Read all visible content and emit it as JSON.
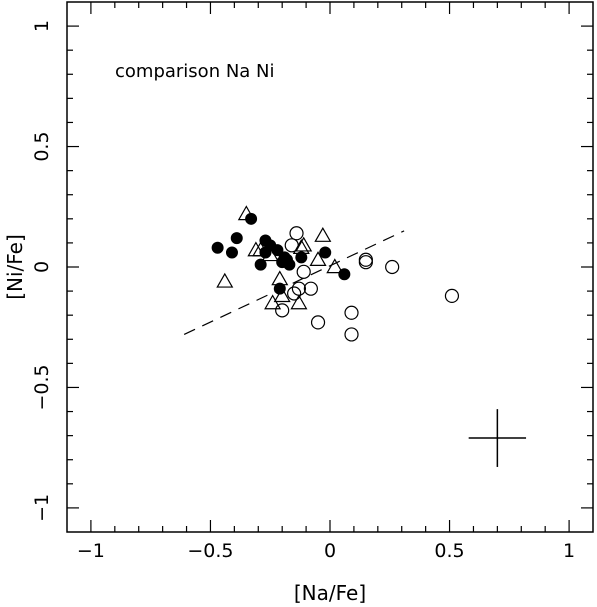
{
  "chart_data": {
    "type": "scatter",
    "title": "",
    "xlabel": "[Na/Fe]",
    "ylabel": "[Ni/Fe]",
    "xlim": [
      -1.1,
      1.1
    ],
    "ylim": [
      -1.1,
      1.1
    ],
    "xticks": [
      -1,
      -0.5,
      0,
      0.5,
      1
    ],
    "xtick_labels": [
      "−1",
      "−0.5",
      "0",
      "0.5",
      "1"
    ],
    "yticks": [
      -1,
      -0.5,
      0,
      0.5,
      1
    ],
    "ytick_labels": [
      "−1",
      "−0.5",
      "0",
      "0.5",
      "1"
    ],
    "grid": false,
    "annotation": "comparison Na Ni",
    "series": [
      {
        "marker": "filled-circle",
        "points": [
          [
            -0.47,
            0.08
          ],
          [
            -0.41,
            0.06
          ],
          [
            -0.39,
            0.12
          ],
          [
            -0.33,
            0.2
          ],
          [
            -0.29,
            0.01
          ],
          [
            -0.27,
            0.11
          ],
          [
            -0.25,
            0.09
          ],
          [
            -0.22,
            0.07
          ],
          [
            -0.2,
            0.02
          ],
          [
            -0.19,
            0.04
          ],
          [
            -0.18,
            0.03
          ],
          [
            -0.17,
            0.01
          ],
          [
            -0.12,
            0.04
          ],
          [
            -0.21,
            -0.09
          ],
          [
            -0.02,
            0.06
          ],
          [
            0.06,
            -0.03
          ],
          [
            -0.27,
            0.06
          ]
        ]
      },
      {
        "marker": "open-circle",
        "points": [
          [
            -0.14,
            0.14
          ],
          [
            -0.16,
            0.09
          ],
          [
            -0.11,
            -0.02
          ],
          [
            -0.08,
            -0.09
          ],
          [
            -0.13,
            -0.09
          ],
          [
            -0.15,
            -0.11
          ],
          [
            -0.2,
            -0.18
          ],
          [
            -0.05,
            -0.23
          ],
          [
            0.09,
            -0.19
          ],
          [
            0.09,
            -0.28
          ],
          [
            0.15,
            0.02
          ],
          [
            0.15,
            0.03
          ],
          [
            0.26,
            0.0
          ],
          [
            0.51,
            -0.12
          ]
        ]
      },
      {
        "marker": "open-triangle",
        "points": [
          [
            -0.35,
            0.22
          ],
          [
            -0.44,
            -0.06
          ],
          [
            -0.29,
            0.07
          ],
          [
            -0.25,
            0.05
          ],
          [
            -0.12,
            0.08
          ],
          [
            -0.11,
            0.09
          ],
          [
            -0.03,
            0.13
          ],
          [
            -0.05,
            0.03
          ],
          [
            0.02,
            0.0
          ],
          [
            -0.21,
            -0.05
          ],
          [
            -0.2,
            -0.12
          ],
          [
            -0.24,
            -0.15
          ],
          [
            -0.13,
            -0.15
          ],
          [
            -0.31,
            0.07
          ]
        ]
      }
    ],
    "fit_line": {
      "style": "dashed",
      "x": [
        -0.61,
        0.31
      ],
      "y": [
        -0.28,
        0.15
      ]
    },
    "error_bar": {
      "x": 0.7,
      "y": -0.71,
      "xerr": 0.12,
      "yerr": 0.12
    }
  }
}
